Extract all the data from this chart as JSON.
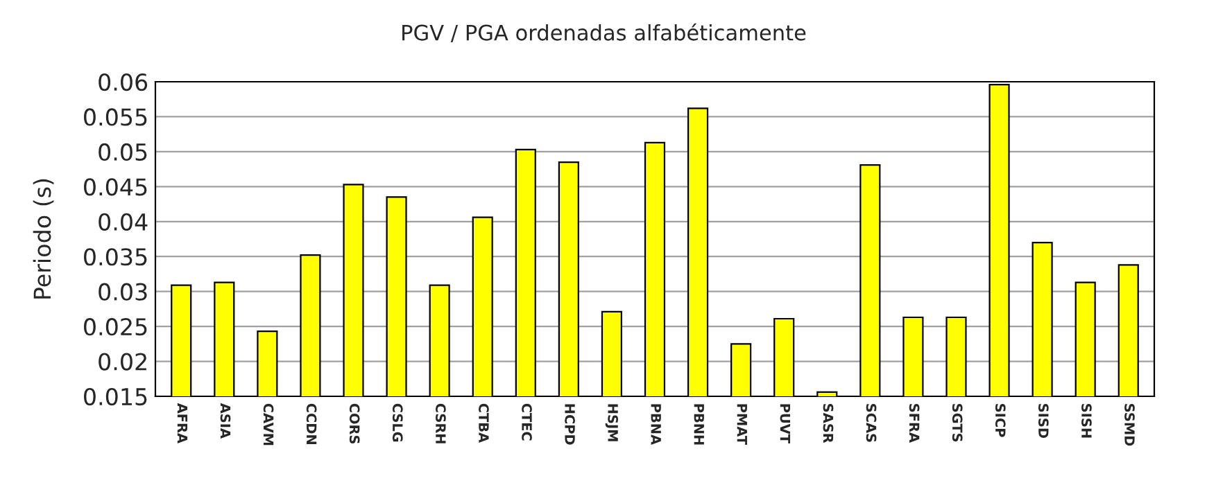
{
  "chart_data": {
    "type": "bar",
    "title": "PGV / PGA ordenadas alfabéticamente",
    "ylabel": "Periodo (s)",
    "categories": [
      "AFRA",
      "ASIA",
      "CAVM",
      "CCDN",
      "CORS",
      "CSLG",
      "CSRH",
      "CTBA",
      "CTEC",
      "HCPD",
      "HSJM",
      "PBNA",
      "PBNH",
      "PMAT",
      "PUVT",
      "SASR",
      "SCAS",
      "SFRA",
      "SGTS",
      "SICP",
      "SISD",
      "SISH",
      "SSMD"
    ],
    "values": [
      0.0309,
      0.0313,
      0.0243,
      0.0352,
      0.0453,
      0.0435,
      0.0309,
      0.0406,
      0.0503,
      0.0485,
      0.0271,
      0.0513,
      0.0562,
      0.0225,
      0.0261,
      0.0156,
      0.0481,
      0.0263,
      0.0263,
      0.0596,
      0.037,
      0.0313,
      0.0338
    ],
    "color": "#ffff00",
    "ylim": [
      0.015,
      0.06
    ],
    "yticks": [
      0.015,
      0.02,
      0.025,
      0.03,
      0.035,
      0.04,
      0.045,
      0.05,
      0.055,
      0.06
    ],
    "grid": "y"
  }
}
